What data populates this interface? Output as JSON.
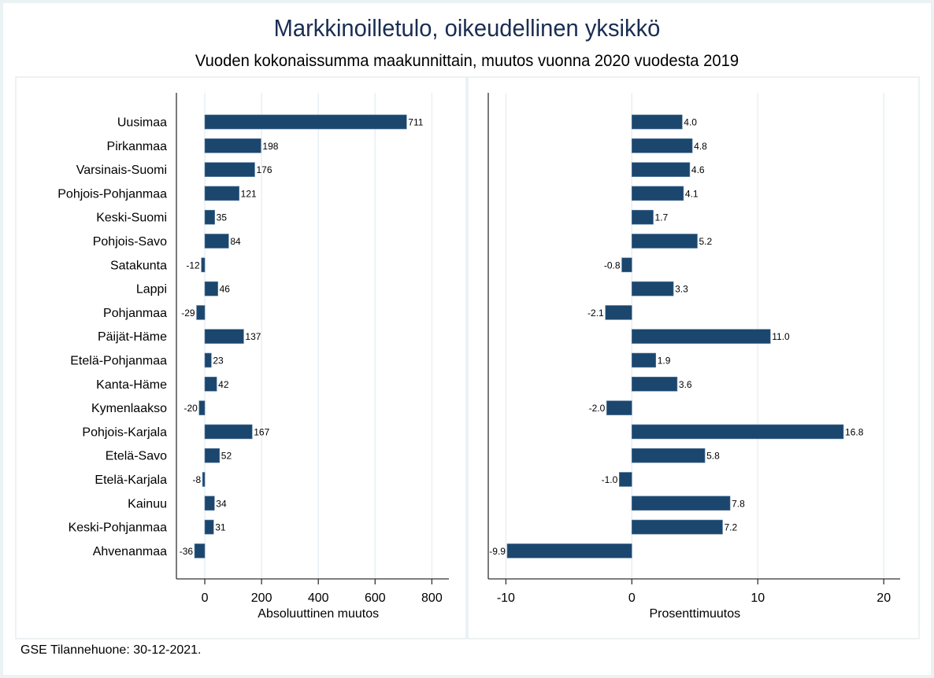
{
  "title": "Markkinoilletulo, oikeudellinen yksikkö",
  "subtitle": "Vuoden kokonaissumma maakunnittain, muutos vuonna 2020 vuodesta 2019",
  "footnote": "GSE Tilannehuone: 30-12-2021.",
  "colors": {
    "bar": "#1b466e",
    "title": "#1a2d52",
    "background": "#eaf2f3"
  },
  "chart_data": [
    {
      "type": "bar",
      "orientation": "horizontal",
      "title": "",
      "xlabel": "Absoluuttinen muutos",
      "ylabel": "",
      "xlim": [
        -100,
        860
      ],
      "xticks": [
        0,
        200,
        400,
        600,
        800
      ],
      "grid": true,
      "categories": [
        "Uusimaa",
        "Pirkanmaa",
        "Varsinais-Suomi",
        "Pohjois-Pohjanmaa",
        "Keski-Suomi",
        "Pohjois-Savo",
        "Satakunta",
        "Lappi",
        "Pohjanmaa",
        "Päijät-Häme",
        "Etelä-Pohjanmaa",
        "Kanta-Häme",
        "Kymenlaakso",
        "Pohjois-Karjala",
        "Etelä-Savo",
        "Etelä-Karjala",
        "Kainuu",
        "Keski-Pohjanmaa",
        "Ahvenanmaa"
      ],
      "values": [
        711,
        198,
        176,
        121,
        35,
        84,
        -12,
        46,
        -29,
        137,
        23,
        42,
        -20,
        167,
        52,
        -8,
        34,
        31,
        -36
      ],
      "value_labels": [
        "711",
        "198",
        "176",
        "121",
        "35",
        "84",
        "-12",
        "46",
        "-29",
        "137",
        "23",
        "42",
        "-20",
        "167",
        "52",
        "-8",
        "34",
        "31",
        "-36"
      ]
    },
    {
      "type": "bar",
      "orientation": "horizontal",
      "title": "",
      "xlabel": "Prosenttimuutos",
      "ylabel": "",
      "xlim": [
        -11.4,
        21.3
      ],
      "xticks": [
        -10,
        0,
        10,
        20
      ],
      "grid": true,
      "categories": [
        "Uusimaa",
        "Pirkanmaa",
        "Varsinais-Suomi",
        "Pohjois-Pohjanmaa",
        "Keski-Suomi",
        "Pohjois-Savo",
        "Satakunta",
        "Lappi",
        "Pohjanmaa",
        "Päijät-Häme",
        "Etelä-Pohjanmaa",
        "Kanta-Häme",
        "Kymenlaakso",
        "Pohjois-Karjala",
        "Etelä-Savo",
        "Etelä-Karjala",
        "Kainuu",
        "Keski-Pohjanmaa",
        "Ahvenanmaa"
      ],
      "values": [
        4.0,
        4.8,
        4.6,
        4.1,
        1.7,
        5.2,
        -0.8,
        3.3,
        -2.1,
        11.0,
        1.9,
        3.6,
        -2.0,
        16.8,
        5.8,
        -1.0,
        7.8,
        7.2,
        -9.9
      ],
      "value_labels": [
        "4.0",
        "4.8",
        "4.6",
        "4.1",
        "1.7",
        "5.2",
        "-0.8",
        "3.3",
        "-2.1",
        "11.0",
        "1.9",
        "3.6",
        "-2.0",
        "16.8",
        "5.8",
        "-1.0",
        "7.8",
        "7.2",
        "-9.9"
      ]
    }
  ]
}
